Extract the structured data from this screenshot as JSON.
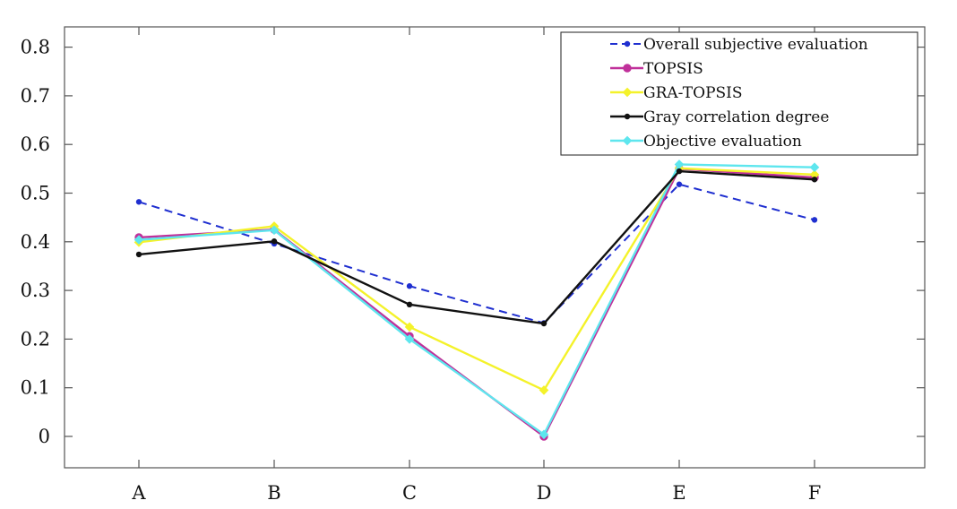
{
  "chart_data": {
    "type": "line",
    "title": "",
    "xlabel": "",
    "ylabel": "",
    "categories": [
      "A",
      "B",
      "C",
      "D",
      "E",
      "F"
    ],
    "ylim": [
      -0.07,
      0.84
    ],
    "yticks": [
      0,
      0.1,
      0.2,
      0.3,
      0.4,
      0.5,
      0.6,
      0.7,
      0.8
    ],
    "ytick_labels": [
      "0",
      "0.1",
      "0.2",
      "0.3",
      "0.4",
      "0.5",
      "0.6",
      "0.7",
      "0.8"
    ],
    "grid": false,
    "legend_position": "top-right",
    "series": [
      {
        "name": "Overall subjective evaluation",
        "color": "#1f2fd0",
        "dash": true,
        "marker": "dot",
        "values": [
          0.482,
          0.396,
          0.309,
          0.233,
          0.518,
          0.445
        ]
      },
      {
        "name": "TOPSIS",
        "color": "#c0309a",
        "dash": false,
        "marker": "circle",
        "values": [
          0.409,
          0.425,
          0.206,
          0.0,
          0.55,
          0.532
        ]
      },
      {
        "name": "GRA-TOPSIS",
        "color": "#f4f22a",
        "dash": false,
        "marker": "diamond",
        "values": [
          0.399,
          0.432,
          0.225,
          0.095,
          0.551,
          0.538
        ]
      },
      {
        "name": "Gray correlation degree",
        "color": "#111111",
        "dash": false,
        "marker": "dot",
        "values": [
          0.374,
          0.401,
          0.271,
          0.232,
          0.545,
          0.528
        ]
      },
      {
        "name": "Objective evaluation",
        "color": "#5ee6ee",
        "dash": false,
        "marker": "diamond",
        "values": [
          0.404,
          0.424,
          0.2,
          0.004,
          0.559,
          0.553
        ]
      }
    ]
  }
}
